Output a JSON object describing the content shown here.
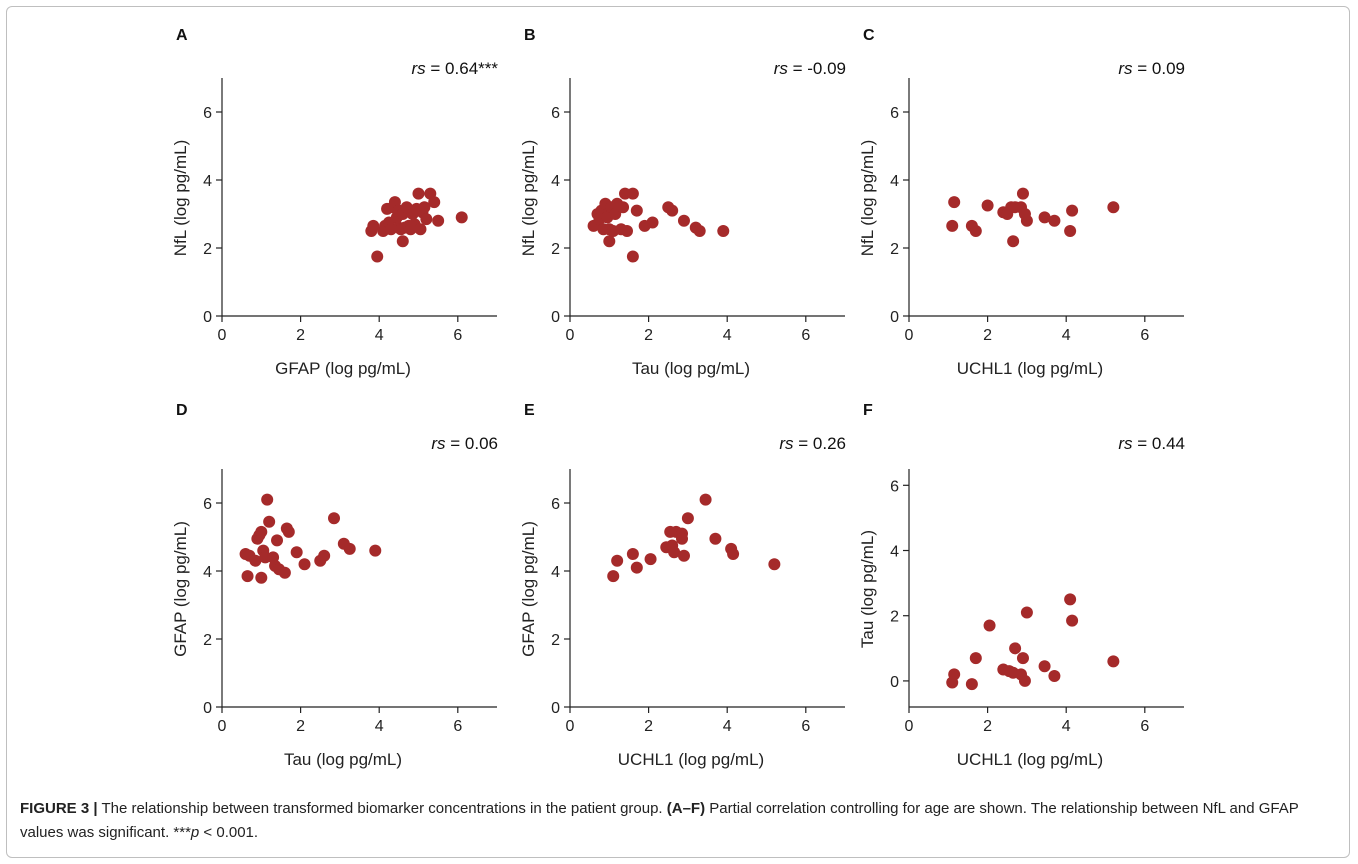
{
  "caption": {
    "label": "FIGURE 3 |",
    "text1": " The relationship between transformed biomarker concentrations in the patient group. ",
    "range": "(A–F)",
    "text2": " Partial correlation controlling for age are shown. The relationship between NfL and GFAP values was significant. ***",
    "p": "p",
    "text3": " < 0.001."
  },
  "colors": {
    "point": "#a52a2a",
    "axis": "#222222"
  },
  "chart_data": [
    {
      "type": "scatter",
      "panel": "A",
      "xlabel": "GFAP (log pg/mL)",
      "ylabel": "NfL (log pg/mL)",
      "stat_name": "rs",
      "stat_value": " = 0.64***",
      "xlim": [
        0,
        7
      ],
      "ylim": [
        0,
        7
      ],
      "xticks": [
        0,
        2,
        4,
        6
      ],
      "yticks": [
        0,
        2,
        4,
        6
      ],
      "points": [
        [
          3.8,
          2.5
        ],
        [
          3.85,
          2.65
        ],
        [
          3.95,
          1.75
        ],
        [
          4.1,
          2.5
        ],
        [
          4.15,
          2.65
        ],
        [
          4.2,
          3.15
        ],
        [
          4.25,
          2.75
        ],
        [
          4.3,
          2.55
        ],
        [
          4.35,
          3.2
        ],
        [
          4.4,
          3.35
        ],
        [
          4.45,
          2.9
        ],
        [
          4.5,
          2.6
        ],
        [
          4.5,
          3.1
        ],
        [
          4.55,
          2.55
        ],
        [
          4.6,
          3.0
        ],
        [
          4.6,
          2.2
        ],
        [
          4.65,
          2.6
        ],
        [
          4.7,
          3.2
        ],
        [
          4.75,
          2.65
        ],
        [
          4.8,
          2.55
        ],
        [
          4.85,
          3.0
        ],
        [
          4.9,
          2.7
        ],
        [
          5.0,
          3.6
        ],
        [
          5.05,
          2.55
        ],
        [
          5.1,
          3.05
        ],
        [
          5.2,
          2.85
        ],
        [
          5.3,
          3.6
        ],
        [
          5.4,
          3.35
        ],
        [
          5.5,
          2.8
        ],
        [
          6.1,
          2.9
        ],
        [
          4.95,
          3.15
        ],
        [
          5.15,
          3.2
        ]
      ]
    },
    {
      "type": "scatter",
      "panel": "B",
      "xlabel": "Tau (log pg/mL)",
      "ylabel": "NfL (log pg/mL)",
      "stat_name": "rs",
      "stat_value": " = -0.09",
      "xlim": [
        0,
        7
      ],
      "ylim": [
        0,
        7
      ],
      "xticks": [
        0,
        2,
        4,
        6
      ],
      "yticks": [
        0,
        2,
        4,
        6
      ],
      "points": [
        [
          0.6,
          2.65
        ],
        [
          0.7,
          3.0
        ],
        [
          0.75,
          2.85
        ],
        [
          0.8,
          3.1
        ],
        [
          0.85,
          2.55
        ],
        [
          0.9,
          3.3
        ],
        [
          0.95,
          2.9
        ],
        [
          1.0,
          2.2
        ],
        [
          1.0,
          2.55
        ],
        [
          1.05,
          3.2
        ],
        [
          1.1,
          2.5
        ],
        [
          1.15,
          3.0
        ],
        [
          1.2,
          3.3
        ],
        [
          1.3,
          2.55
        ],
        [
          1.35,
          3.2
        ],
        [
          1.4,
          3.6
        ],
        [
          1.45,
          2.5
        ],
        [
          1.6,
          3.6
        ],
        [
          1.6,
          1.75
        ],
        [
          1.7,
          3.1
        ],
        [
          1.9,
          2.65
        ],
        [
          2.1,
          2.75
        ],
        [
          2.5,
          3.2
        ],
        [
          2.6,
          3.1
        ],
        [
          2.9,
          2.8
        ],
        [
          3.2,
          2.6
        ],
        [
          3.3,
          2.5
        ],
        [
          3.9,
          2.5
        ]
      ]
    },
    {
      "type": "scatter",
      "panel": "C",
      "xlabel": "UCHL1 (log pg/mL)",
      "ylabel": "NfL (log pg/mL)",
      "stat_name": "rs",
      "stat_value": " = 0.09",
      "xlim": [
        0,
        7
      ],
      "ylim": [
        0,
        7
      ],
      "xticks": [
        0,
        2,
        4,
        6
      ],
      "yticks": [
        0,
        2,
        4,
        6
      ],
      "points": [
        [
          1.1,
          2.65
        ],
        [
          1.15,
          3.35
        ],
        [
          1.6,
          2.65
        ],
        [
          1.7,
          2.5
        ],
        [
          2.0,
          3.25
        ],
        [
          2.4,
          3.05
        ],
        [
          2.5,
          3.0
        ],
        [
          2.6,
          3.2
        ],
        [
          2.65,
          2.2
        ],
        [
          2.7,
          3.2
        ],
        [
          2.85,
          3.2
        ],
        [
          2.9,
          3.6
        ],
        [
          2.95,
          3.0
        ],
        [
          3.0,
          2.8
        ],
        [
          3.45,
          2.9
        ],
        [
          3.7,
          2.8
        ],
        [
          4.1,
          2.5
        ],
        [
          4.15,
          3.1
        ],
        [
          5.2,
          3.2
        ]
      ]
    },
    {
      "type": "scatter",
      "panel": "D",
      "xlabel": "Tau (log pg/mL)",
      "ylabel": "GFAP (log pg/mL)",
      "stat_name": "rs",
      "stat_value": " = 0.06",
      "xlim": [
        0,
        7
      ],
      "ylim": [
        0,
        7
      ],
      "xticks": [
        0,
        2,
        4,
        6
      ],
      "yticks": [
        0,
        2,
        4,
        6
      ],
      "points": [
        [
          0.6,
          4.5
        ],
        [
          0.65,
          3.85
        ],
        [
          0.7,
          4.45
        ],
        [
          0.85,
          4.3
        ],
        [
          0.9,
          4.95
        ],
        [
          0.95,
          5.05
        ],
        [
          1.0,
          5.15
        ],
        [
          1.0,
          3.8
        ],
        [
          1.05,
          4.6
        ],
        [
          1.1,
          4.4
        ],
        [
          1.15,
          6.1
        ],
        [
          1.2,
          5.45
        ],
        [
          1.3,
          4.4
        ],
        [
          1.35,
          4.15
        ],
        [
          1.4,
          4.9
        ],
        [
          1.45,
          4.05
        ],
        [
          1.6,
          3.95
        ],
        [
          1.65,
          5.25
        ],
        [
          1.7,
          5.15
        ],
        [
          1.9,
          4.55
        ],
        [
          2.1,
          4.2
        ],
        [
          2.5,
          4.3
        ],
        [
          2.6,
          4.45
        ],
        [
          2.85,
          5.55
        ],
        [
          3.1,
          4.8
        ],
        [
          3.25,
          4.65
        ],
        [
          3.9,
          4.6
        ]
      ]
    },
    {
      "type": "scatter",
      "panel": "E",
      "xlabel": "UCHL1 (log pg/mL)",
      "ylabel": "GFAP (log pg/mL)",
      "stat_name": "rs",
      "stat_value": " = 0.26",
      "xlim": [
        0,
        7
      ],
      "ylim": [
        0,
        7
      ],
      "xticks": [
        0,
        2,
        4,
        6
      ],
      "yticks": [
        0,
        2,
        4,
        6
      ],
      "points": [
        [
          1.1,
          3.85
        ],
        [
          1.2,
          4.3
        ],
        [
          1.6,
          4.5
        ],
        [
          1.7,
          4.1
        ],
        [
          2.05,
          4.35
        ],
        [
          2.45,
          4.7
        ],
        [
          2.55,
          5.15
        ],
        [
          2.6,
          4.75
        ],
        [
          2.65,
          4.55
        ],
        [
          2.7,
          5.15
        ],
        [
          2.85,
          5.1
        ],
        [
          2.85,
          4.95
        ],
        [
          2.9,
          4.45
        ],
        [
          3.0,
          5.55
        ],
        [
          3.45,
          6.1
        ],
        [
          3.7,
          4.95
        ],
        [
          4.1,
          4.65
        ],
        [
          4.15,
          4.5
        ],
        [
          5.2,
          4.2
        ]
      ]
    },
    {
      "type": "scatter",
      "panel": "F",
      "xlabel": "UCHL1 (log pg/mL)",
      "ylabel": "Tau (log pg/mL)",
      "stat_name": "rs",
      "stat_value": " = 0.44",
      "xlim": [
        0,
        7
      ],
      "ylim": [
        -0.8,
        6.5
      ],
      "xticks": [
        0,
        2,
        4,
        6
      ],
      "yticks": [
        0,
        2,
        4,
        6
      ],
      "points": [
        [
          1.1,
          -0.05
        ],
        [
          1.15,
          0.2
        ],
        [
          1.6,
          -0.1
        ],
        [
          1.7,
          0.7
        ],
        [
          2.05,
          1.7
        ],
        [
          2.4,
          0.35
        ],
        [
          2.55,
          0.3
        ],
        [
          2.65,
          0.25
        ],
        [
          2.7,
          1.0
        ],
        [
          2.85,
          0.2
        ],
        [
          2.9,
          0.7
        ],
        [
          2.95,
          0.0
        ],
        [
          3.0,
          2.1
        ],
        [
          3.45,
          0.45
        ],
        [
          3.7,
          0.15
        ],
        [
          4.1,
          2.5
        ],
        [
          4.15,
          1.85
        ],
        [
          5.2,
          0.6
        ]
      ]
    }
  ]
}
